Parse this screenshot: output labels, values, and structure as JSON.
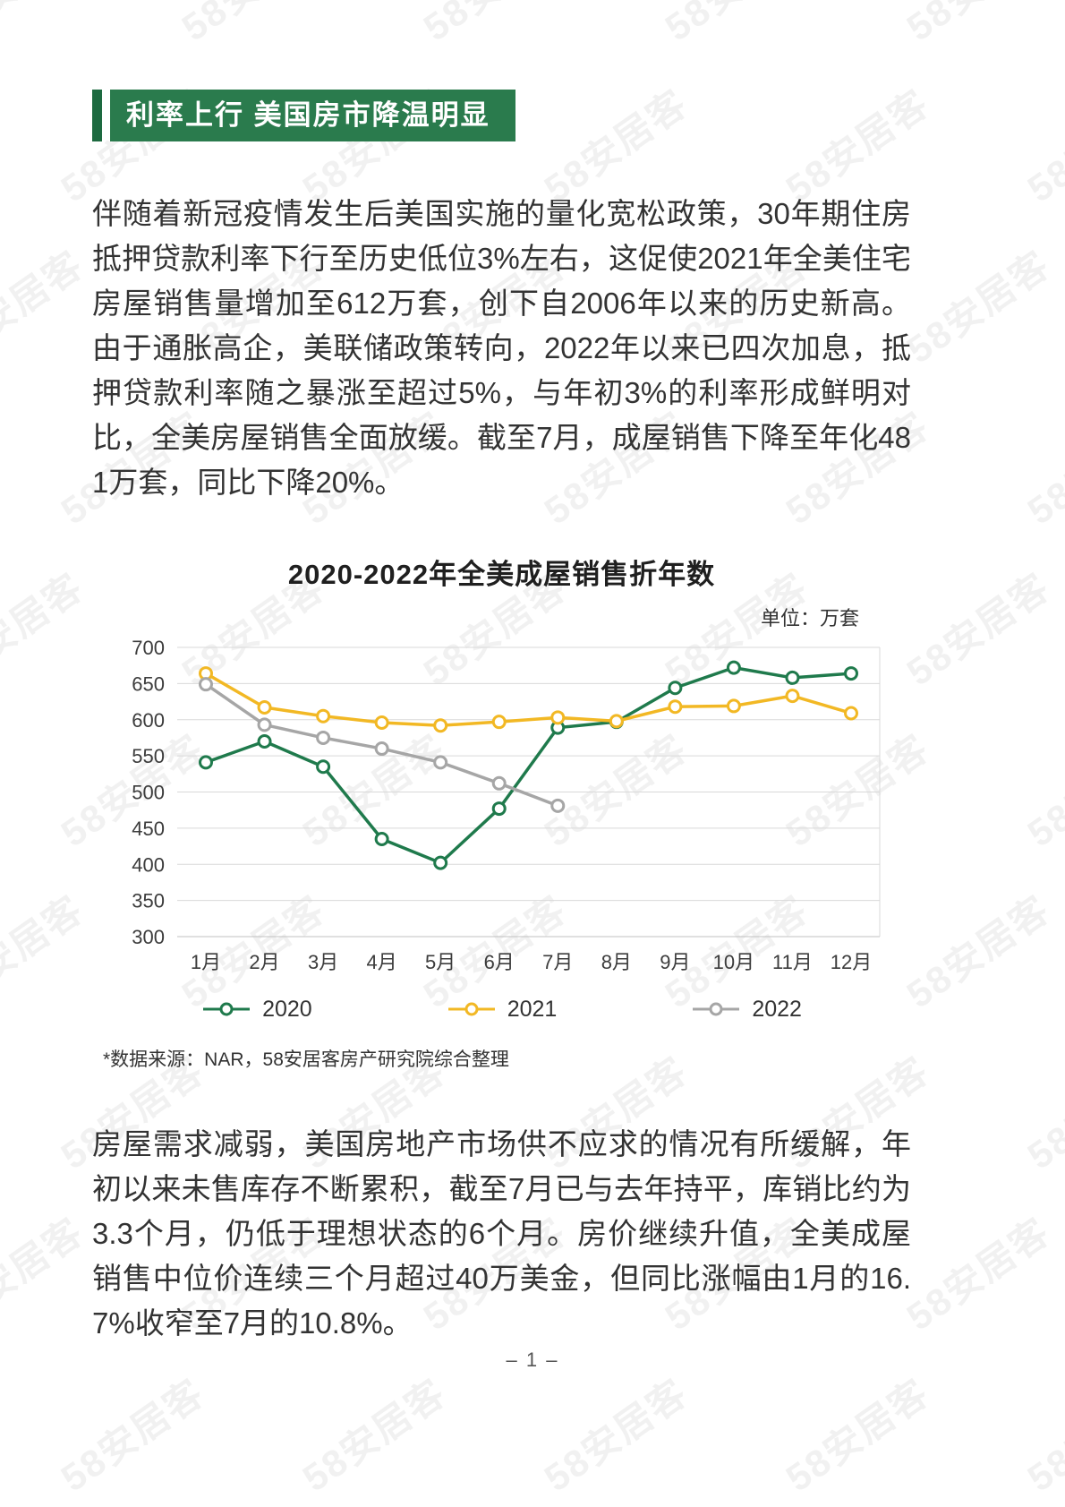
{
  "header": {
    "title": "利率上行 美国房市降温明显"
  },
  "paragraphs": {
    "p1": "伴随着新冠疫情发生后美国实施的量化宽松政策，30年期住房抵押贷款利率下行至历史低位3%左右，这促使2021年全美住宅房屋销售量增加至612万套，创下自2006年以来的历史新高。由于通胀高企，美联储政策转向，2022年以来已四次加息，抵押贷款利率随之暴涨至超过5%，与年初3%的利率形成鲜明对比，全美房屋销售全面放缓。截至7月，成屋销售下降至年化481万套，同比下降20%。",
    "p2": "房屋需求减弱，美国房地产市场供不应求的情况有所缓解，年初以来未售库存不断累积，截至7月已与去年持平，库销比约为3.3个月，仍低于理想状态的6个月。房价继续升值，全美成屋销售中位价连续三个月超过40万美金，但同比涨幅由1月的16.7%收窄至7月的10.8%。"
  },
  "chart": {
    "title": "2020-2022年全美成屋销售折年数",
    "unit_label": "单位：万套",
    "source_note": "*数据来源：NAR，58安居客房产研究院综合整理"
  },
  "chart_data": {
    "type": "line",
    "title": "2020-2022年全美成屋销售折年数",
    "unit": "万套",
    "categories": [
      "1月",
      "2月",
      "3月",
      "4月",
      "5月",
      "6月",
      "7月",
      "8月",
      "9月",
      "10月",
      "11月",
      "12月"
    ],
    "series": [
      {
        "name": "2020",
        "color": "#1f7a4c",
        "values": [
          541,
          570,
          535,
          435,
          402,
          477,
          589,
          597,
          644,
          672,
          658,
          664
        ]
      },
      {
        "name": "2021",
        "color": "#f2b824",
        "values": [
          664,
          617,
          605,
          596,
          592,
          597,
          603,
          598,
          618,
          619,
          633,
          609
        ]
      },
      {
        "name": "2022",
        "color": "#a6a6a6",
        "values": [
          649,
          593,
          575,
          560,
          541,
          512,
          481,
          null,
          null,
          null,
          null,
          null
        ]
      }
    ],
    "ylim": [
      300,
      700
    ],
    "ytick_step": 50,
    "grid": true,
    "legend_position": "bottom"
  },
  "footer": {
    "page_number": "– 1 –"
  },
  "watermark": {
    "text": "58安居客"
  }
}
